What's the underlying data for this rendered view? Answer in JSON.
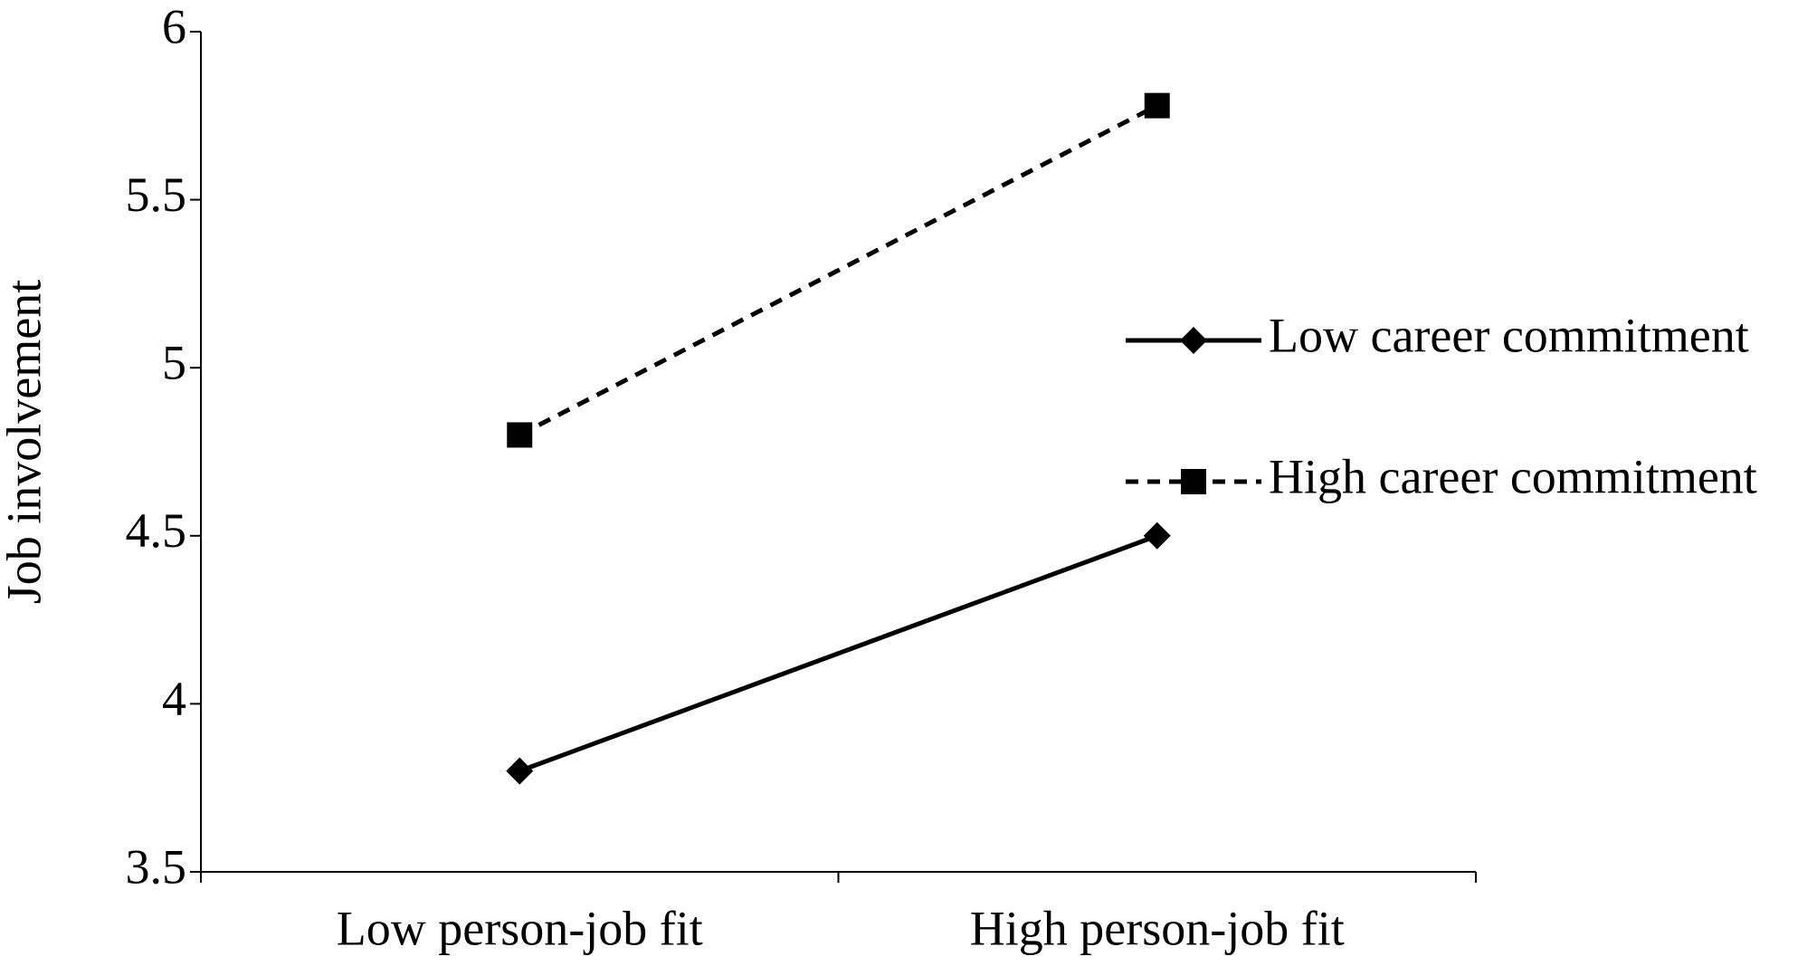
{
  "chart_data": {
    "type": "line",
    "y_label": "Job involvement",
    "categories": [
      "Low person-job fit",
      "High person-job fit"
    ],
    "series": [
      {
        "name": "Low career commitment",
        "color": "#000000",
        "dash": "solid",
        "marker": "diamond",
        "values": [
          3.8,
          4.5
        ]
      },
      {
        "name": "High career commitment",
        "color": "#000000",
        "dash": "dashed",
        "marker": "square",
        "values": [
          4.8,
          5.78
        ]
      }
    ],
    "ylim": [
      3.5,
      6
    ],
    "yticks": [
      3.5,
      4,
      4.5,
      5,
      5.5,
      6
    ],
    "grid": false,
    "legend": "right"
  }
}
